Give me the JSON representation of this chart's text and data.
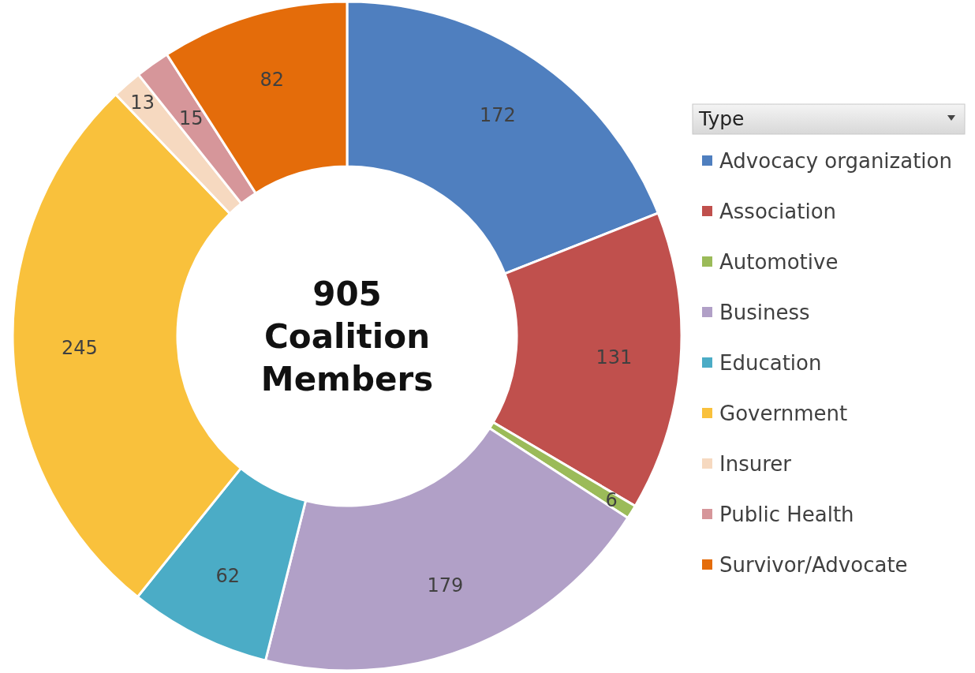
{
  "chart_data": {
    "type": "donut",
    "legend_title": "Type",
    "legend": "right",
    "data_labels": true,
    "categories": [
      "Advocacy organization",
      "Association",
      "Automotive",
      "Business",
      "Education",
      "Government",
      "Insurer",
      "Public Health",
      "Survivor/Advocate"
    ],
    "values": [
      172,
      131,
      6,
      179,
      62,
      245,
      13,
      15,
      82
    ],
    "colors": [
      "#4f7fbf",
      "#c0504d",
      "#9bbb59",
      "#b1a0c7",
      "#4bacc6",
      "#f9c13c",
      "#f6d9c0",
      "#d6969a",
      "#e46c0a"
    ],
    "annotations": [
      "905\nCoalition\nMembers"
    ]
  }
}
